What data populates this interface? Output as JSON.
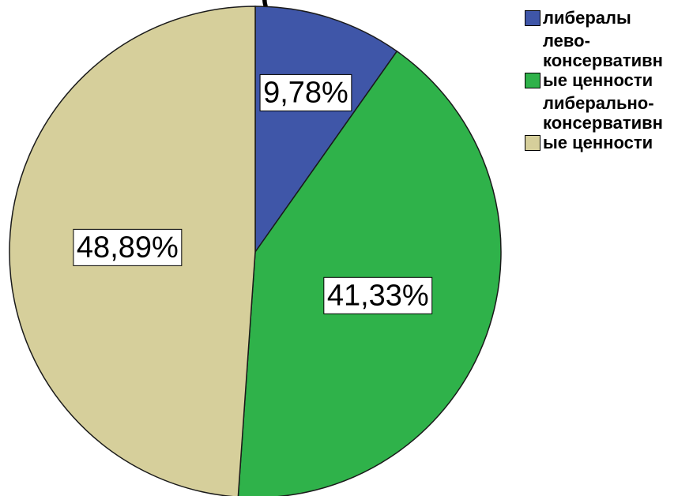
{
  "chart_data": {
    "type": "pie",
    "title": "(",
    "start_angle_deg": 0,
    "direction": "clockwise",
    "slices": [
      {
        "label": "либералы",
        "value": 9.78,
        "value_label": "9,78%",
        "color": "#3f56a8"
      },
      {
        "label": "лево-\nконсервативн\nые ценности",
        "value": 41.33,
        "value_label": "41,33%",
        "color": "#2fb24a"
      },
      {
        "label": "либерально-\nконсервативн\nые ценности",
        "value": 48.89,
        "value_label": "48,89%",
        "color": "#d6cf9b"
      }
    ],
    "legend_position": "top-right",
    "data_labels": true
  }
}
